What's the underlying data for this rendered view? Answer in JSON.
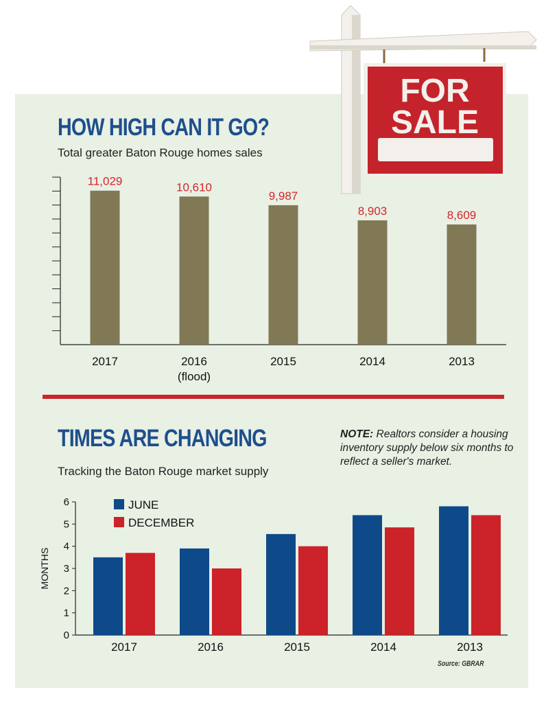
{
  "top_chart": {
    "title": "HOW HIGH CAN IT GO?",
    "subtitle": "Total greater Baton Rouge homes sales"
  },
  "bottom_chart": {
    "title": "TIMES ARE CHANGING",
    "subtitle": "Tracking the Baton Rouge market supply",
    "note_label": "NOTE:",
    "note_text": "Realtors consider a housing inventory supply below six months to reflect a seller's market.",
    "source": "Source: GBRAR"
  },
  "sign": {
    "line1": "FOR",
    "line2": "SALE"
  },
  "colors": {
    "olive_bar": "#817956",
    "value_label": "#d4262b",
    "june": "#0e4a8a",
    "december": "#cc2229",
    "divider": "#c9252c",
    "title": "#1d4f8c",
    "panel": "#e9f0e4"
  },
  "chart_data": [
    {
      "type": "bar",
      "title": "HOW HIGH CAN IT GO?",
      "subtitle": "Total greater Baton Rouge homes sales",
      "categories": [
        "2017",
        "2016",
        "2015",
        "2014",
        "2013"
      ],
      "category_sublabels": [
        "",
        "(flood)",
        "",
        "",
        ""
      ],
      "values": [
        11029,
        10610,
        9987,
        8903,
        8609
      ],
      "value_labels": [
        "11,029",
        "10,610",
        "9,987",
        "8,903",
        "8,609"
      ],
      "ylim": [
        0,
        12000
      ],
      "y_tick_labels": false
    },
    {
      "type": "bar",
      "title": "TIMES ARE CHANGING",
      "subtitle": "Tracking the Baton Rouge market supply",
      "categories": [
        "2017",
        "2016",
        "2015",
        "2014",
        "2013"
      ],
      "series": [
        {
          "name": "JUNE",
          "values": [
            3.5,
            3.9,
            4.55,
            5.4,
            5.8
          ]
        },
        {
          "name": "DECEMBER",
          "values": [
            3.7,
            3.0,
            4.0,
            4.85,
            5.4
          ]
        }
      ],
      "ylabel": "MONTHS",
      "ylim": [
        0,
        6
      ],
      "yticks": [
        "0",
        "1",
        "2",
        "3",
        "4",
        "5",
        "6"
      ],
      "legend": "top-left"
    }
  ]
}
